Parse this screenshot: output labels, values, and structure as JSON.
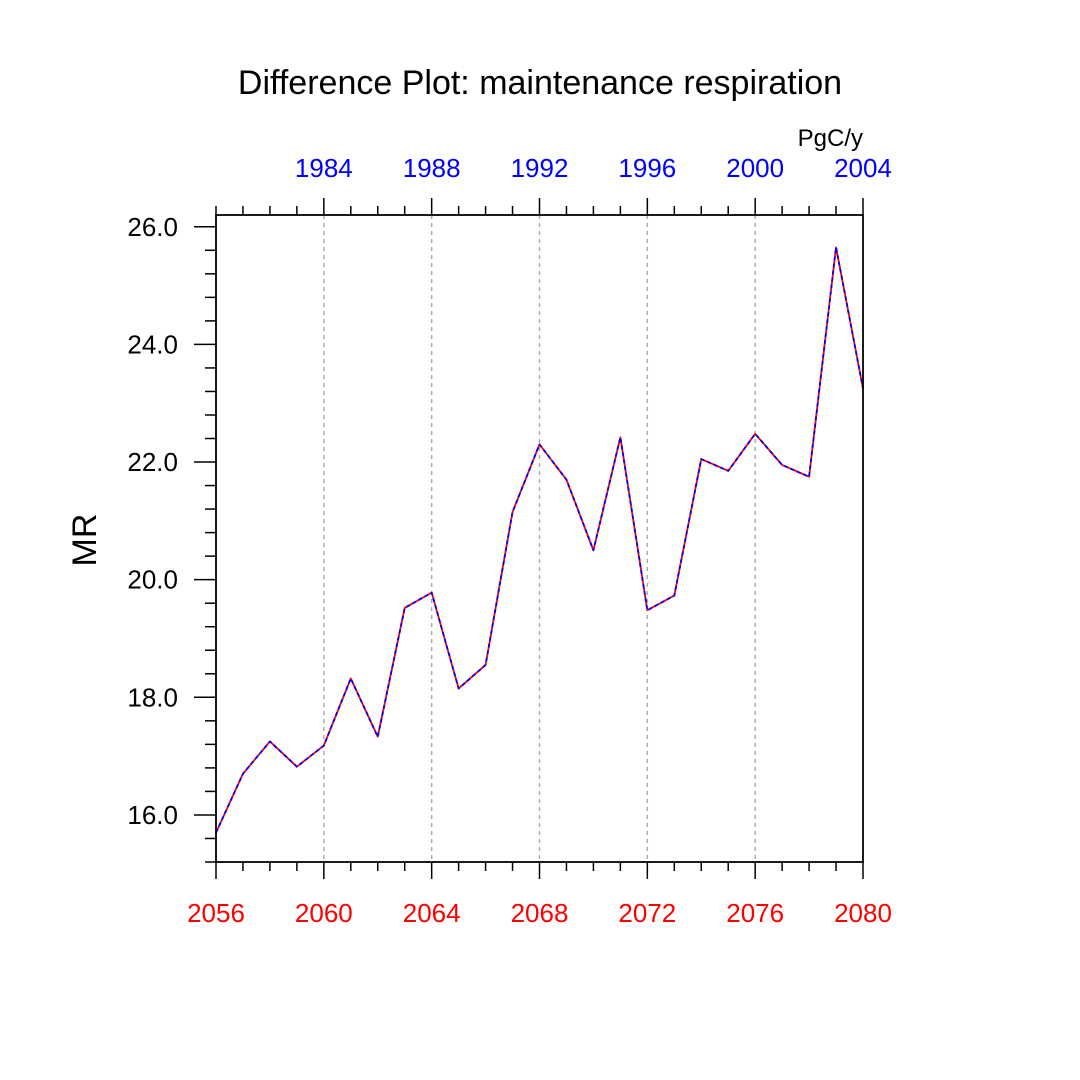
{
  "chart_data": {
    "type": "line",
    "title": "Difference Plot: maintenance respiration",
    "units": "PgC/y",
    "ylabel": "MR",
    "ylim": [
      15.2,
      26.2
    ],
    "y_ticks": [
      16.0,
      18.0,
      20.0,
      22.0,
      24.0,
      26.0
    ],
    "y_tick_labels": [
      "16.0",
      "18.0",
      "20.0",
      "22.0",
      "24.0",
      "26.0"
    ],
    "x_bottom": {
      "range": [
        2056,
        2080
      ],
      "ticks": [
        2056,
        2060,
        2064,
        2068,
        2072,
        2076,
        2080
      ],
      "tick_labels": [
        "2056",
        "2060",
        "2064",
        "2068",
        "2072",
        "2076",
        "2080"
      ],
      "color": "#ff0000"
    },
    "x_top": {
      "range": [
        1980,
        2004
      ],
      "ticks": [
        1984,
        1988,
        1992,
        1996,
        2000,
        2004
      ],
      "tick_labels": [
        "1984",
        "1988",
        "1992",
        "1996",
        "2000",
        "2004"
      ],
      "color": "#0000ff"
    },
    "grid": "vertical dashed at major x ticks",
    "series": [
      {
        "color": "#ff0000",
        "x": [
          2056,
          2057,
          2058,
          2059,
          2060,
          2061,
          2062,
          2063,
          2064,
          2065,
          2066,
          2067,
          2068,
          2069,
          2070,
          2071,
          2072,
          2073,
          2074,
          2075,
          2076,
          2077,
          2078,
          2079,
          2080
        ],
        "values": [
          15.7,
          16.7,
          17.25,
          16.82,
          17.18,
          18.32,
          17.33,
          19.52,
          19.78,
          18.15,
          18.55,
          21.15,
          22.3,
          21.7,
          20.5,
          22.42,
          19.48,
          19.73,
          22.05,
          21.85,
          22.48,
          21.95,
          21.75,
          25.65,
          23.25
        ]
      },
      {
        "color": "#0000ff",
        "x": [
          1980,
          1981,
          1982,
          1983,
          1984,
          1985,
          1986,
          1987,
          1988,
          1989,
          1990,
          1991,
          1992,
          1993,
          1994,
          1995,
          1996,
          1997,
          1998,
          1999,
          2000,
          2001,
          2002,
          2003,
          2004
        ],
        "values": [
          15.7,
          16.7,
          17.25,
          16.82,
          17.18,
          18.32,
          17.33,
          19.52,
          19.78,
          18.15,
          18.55,
          21.15,
          22.3,
          21.7,
          20.5,
          22.42,
          19.48,
          19.73,
          22.05,
          21.85,
          22.48,
          21.95,
          21.75,
          25.65,
          23.25
        ]
      }
    ]
  }
}
